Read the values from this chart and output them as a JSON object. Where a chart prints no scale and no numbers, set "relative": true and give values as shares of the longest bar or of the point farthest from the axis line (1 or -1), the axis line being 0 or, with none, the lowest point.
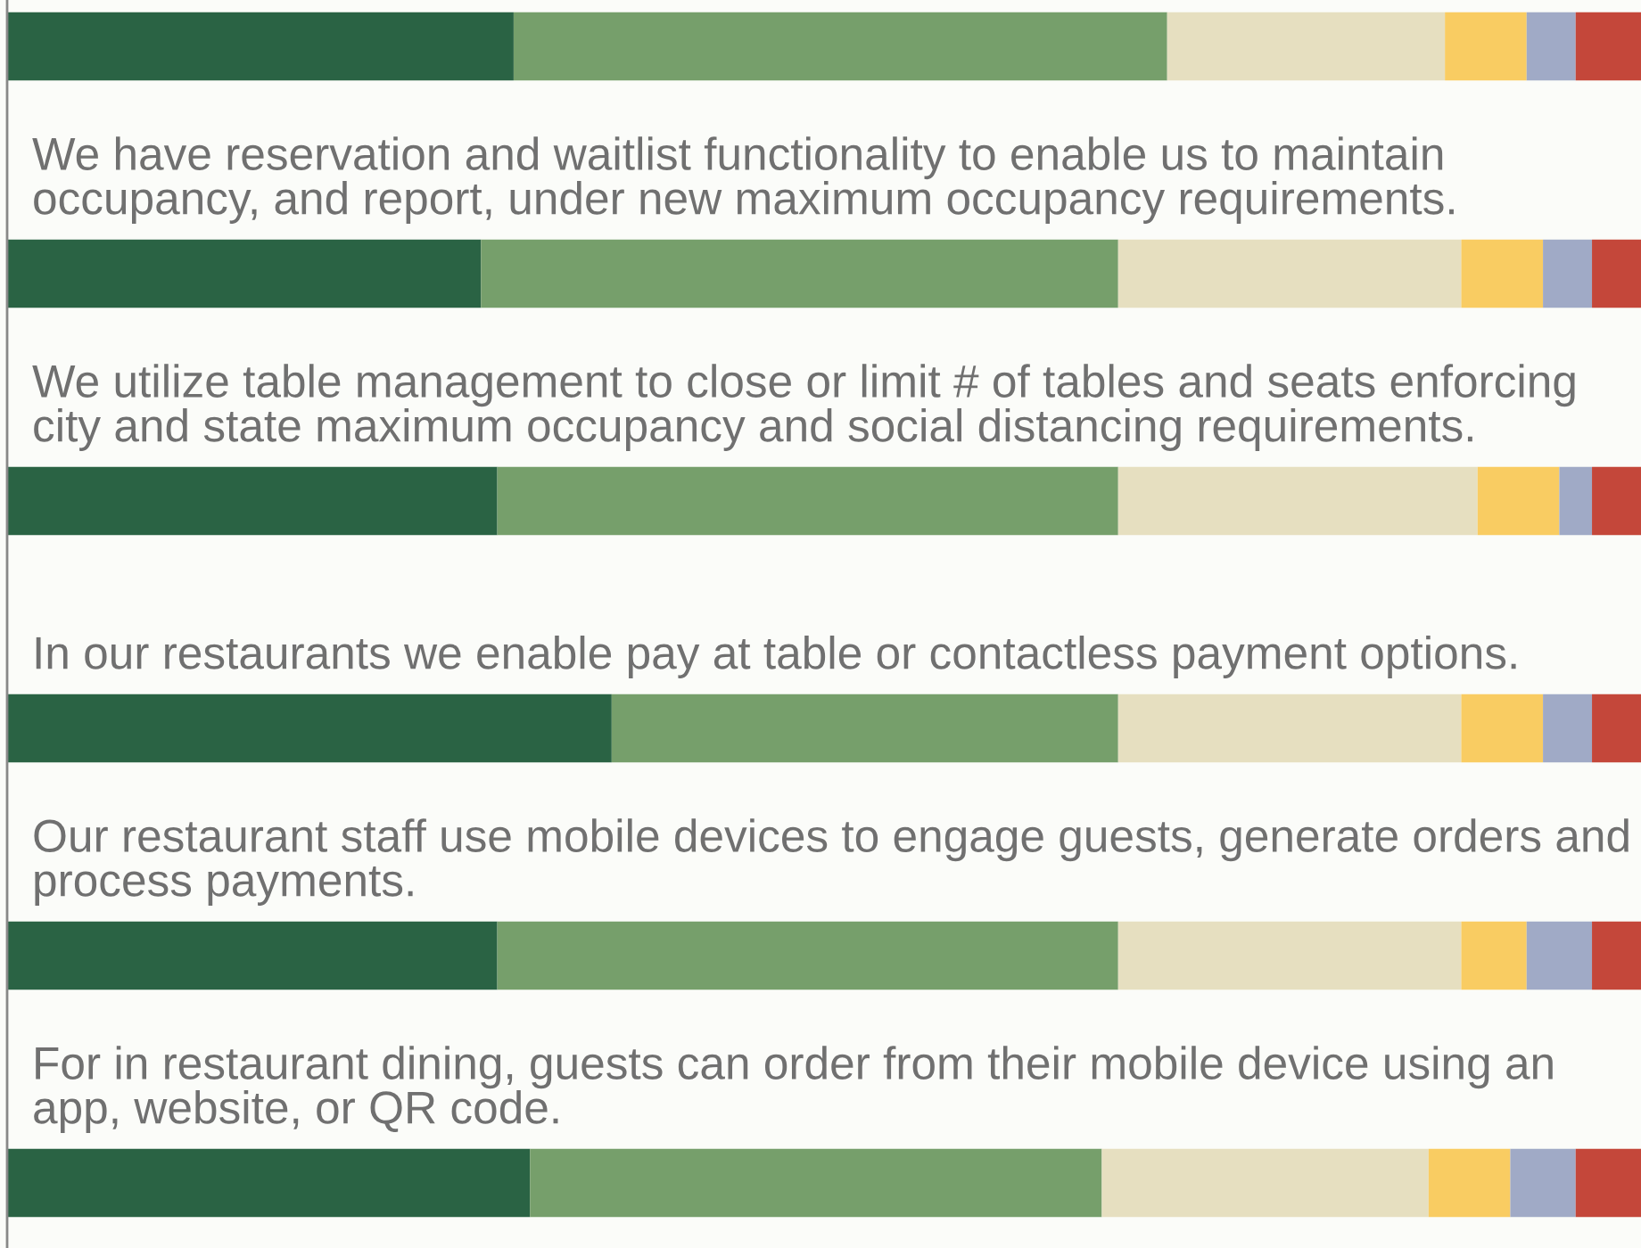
{
  "chart_data": {
    "type": "bar",
    "orientation": "horizontal",
    "stacked": true,
    "relative": true,
    "categories": [
      null,
      "We have reservation and waitlist functionality to enable us to maintain occupancy, and report, under new maximum occupancy requirements.",
      "We utilize table management to close or limit # of tables and seats enforcing city and state maximum occupancy and social distancing requirements.",
      "In our restaurants we enable pay at table or contactless payment options.",
      "Our restaurant staff use mobile devices to engage guests, generate orders and process payments.",
      "For in restaurant dining, guests can order from their mobile device using an app, website, or QR code."
    ],
    "series": [
      {
        "color": "#2a6344",
        "values": [
          0.31,
          0.29,
          0.3,
          0.37,
          0.3,
          0.32
        ]
      },
      {
        "color": "#769f6b",
        "values": [
          0.4,
          0.39,
          0.38,
          0.31,
          0.38,
          0.35
        ]
      },
      {
        "color": "#e6dfc0",
        "values": [
          0.17,
          0.21,
          0.22,
          0.21,
          0.21,
          0.2
        ]
      },
      {
        "color": "#f9cc62",
        "values": [
          0.05,
          0.05,
          0.05,
          0.05,
          0.04,
          0.05
        ]
      },
      {
        "color": "#a0aac6",
        "values": [
          0.03,
          0.03,
          0.02,
          0.03,
          0.04,
          0.04
        ]
      },
      {
        "color": "#c4473a",
        "values": [
          0.04,
          0.03,
          0.03,
          0.03,
          0.03,
          0.04
        ]
      }
    ]
  }
}
